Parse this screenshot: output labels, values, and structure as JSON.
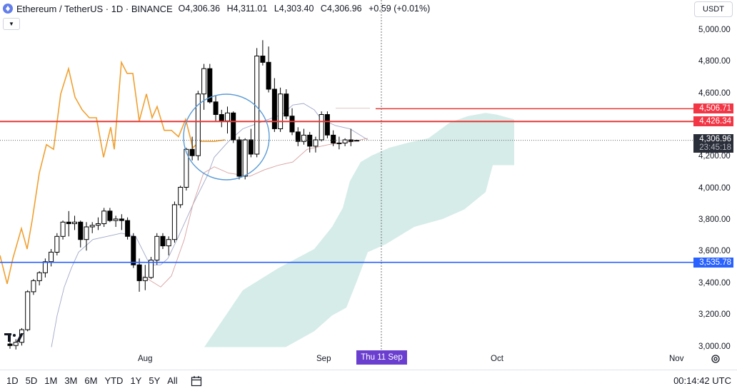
{
  "header": {
    "title": "Ethereum / TetherUS · 1D · BINANCE",
    "ohlc": [
      {
        "key": "O",
        "value": "4,306.36"
      },
      {
        "key": "H",
        "value": "4,311.01"
      },
      {
        "key": "L",
        "value": "4,303.40"
      },
      {
        "key": "C",
        "value": "4,306.96"
      }
    ],
    "change": "+0.59 (+0.01%)"
  },
  "currency": "USDT",
  "price_axis": {
    "ticks": [
      "5,000.00",
      "4,800.00",
      "4,600.00",
      "4,200.00",
      "4,000.00",
      "3,800.00",
      "3,600.00",
      "3,400.00",
      "3,200.00",
      "3,000.00"
    ],
    "tick_values": [
      5000,
      4800,
      4600,
      4200,
      4000,
      3800,
      3600,
      3400,
      3200,
      3000
    ]
  },
  "price_labels": {
    "resistance_high": {
      "text": "4,506.71",
      "value": 4506.71,
      "color": "#f23645"
    },
    "resistance_low": {
      "text": "4,426.34",
      "value": 4426.34,
      "color": "#f23645"
    },
    "last_price": {
      "text": "4,306.96",
      "value": 4306.96,
      "countdown": "23:45:18"
    },
    "support": {
      "text": "3,535.78",
      "value": 3535.78,
      "color": "#2962ff"
    }
  },
  "time_axis": {
    "ticks": [
      "Aug",
      "Sep",
      "Oct",
      "Nov"
    ],
    "crosshair": "Thu 11 Sep"
  },
  "ranges": [
    "1D",
    "5D",
    "1M",
    "3M",
    "6M",
    "YTD",
    "1Y",
    "5Y",
    "All"
  ],
  "clock": "00:14:42 UTC",
  "colors": {
    "up": "#ffffff",
    "down": "#000000",
    "orange_line": "#f0a030",
    "kumo": "#cfe9e5",
    "circle": "#5b9bd5",
    "red_line": "#e53935",
    "blue_line": "#2962ff"
  },
  "chart_data": {
    "type": "candlestick",
    "candles": [
      {
        "o": 3020,
        "h": 3040,
        "l": 2990,
        "c": 3010
      },
      {
        "o": 3010,
        "h": 3050,
        "l": 2985,
        "c": 3030
      },
      {
        "o": 3030,
        "h": 3120,
        "l": 3010,
        "c": 3110
      },
      {
        "o": 3110,
        "h": 3360,
        "l": 3100,
        "c": 3350
      },
      {
        "o": 3350,
        "h": 3430,
        "l": 3330,
        "c": 3420
      },
      {
        "o": 3420,
        "h": 3480,
        "l": 3390,
        "c": 3470
      },
      {
        "o": 3470,
        "h": 3560,
        "l": 3440,
        "c": 3540
      },
      {
        "o": 3540,
        "h": 3620,
        "l": 3510,
        "c": 3600
      },
      {
        "o": 3600,
        "h": 3720,
        "l": 3580,
        "c": 3700
      },
      {
        "o": 3700,
        "h": 3800,
        "l": 3680,
        "c": 3790
      },
      {
        "o": 3790,
        "h": 3860,
        "l": 3700,
        "c": 3780
      },
      {
        "o": 3780,
        "h": 3830,
        "l": 3740,
        "c": 3790
      },
      {
        "o": 3790,
        "h": 3800,
        "l": 3630,
        "c": 3680
      },
      {
        "o": 3680,
        "h": 3790,
        "l": 3610,
        "c": 3760
      },
      {
        "o": 3760,
        "h": 3790,
        "l": 3720,
        "c": 3770
      },
      {
        "o": 3770,
        "h": 3820,
        "l": 3740,
        "c": 3780
      },
      {
        "o": 3780,
        "h": 3880,
        "l": 3760,
        "c": 3860
      },
      {
        "o": 3860,
        "h": 3880,
        "l": 3790,
        "c": 3800
      },
      {
        "o": 3800,
        "h": 3830,
        "l": 3760,
        "c": 3810
      },
      {
        "o": 3810,
        "h": 3840,
        "l": 3740,
        "c": 3800
      },
      {
        "o": 3800,
        "h": 3820,
        "l": 3680,
        "c": 3700
      },
      {
        "o": 3700,
        "h": 3720,
        "l": 3500,
        "c": 3520
      },
      {
        "o": 3520,
        "h": 3560,
        "l": 3350,
        "c": 3420
      },
      {
        "o": 3420,
        "h": 3520,
        "l": 3360,
        "c": 3440
      },
      {
        "o": 3440,
        "h": 3570,
        "l": 3430,
        "c": 3550
      },
      {
        "o": 3550,
        "h": 3720,
        "l": 3520,
        "c": 3700
      },
      {
        "o": 3700,
        "h": 3720,
        "l": 3620,
        "c": 3640
      },
      {
        "o": 3640,
        "h": 3700,
        "l": 3580,
        "c": 3680
      },
      {
        "o": 3680,
        "h": 3920,
        "l": 3660,
        "c": 3900
      },
      {
        "o": 3900,
        "h": 4020,
        "l": 3880,
        "c": 4010
      },
      {
        "o": 4010,
        "h": 4260,
        "l": 3990,
        "c": 4250
      },
      {
        "o": 4250,
        "h": 4330,
        "l": 4180,
        "c": 4210
      },
      {
        "o": 4210,
        "h": 4620,
        "l": 4180,
        "c": 4600
      },
      {
        "o": 4600,
        "h": 4790,
        "l": 4500,
        "c": 4760
      },
      {
        "o": 4760,
        "h": 4790,
        "l": 4540,
        "c": 4550
      },
      {
        "o": 4550,
        "h": 4590,
        "l": 4430,
        "c": 4470
      },
      {
        "o": 4470,
        "h": 4500,
        "l": 4390,
        "c": 4430
      },
      {
        "o": 4430,
        "h": 4520,
        "l": 4350,
        "c": 4480
      },
      {
        "o": 4480,
        "h": 4490,
        "l": 4290,
        "c": 4310
      },
      {
        "o": 4310,
        "h": 4330,
        "l": 4060,
        "c": 4080
      },
      {
        "o": 4080,
        "h": 4320,
        "l": 4060,
        "c": 4310
      },
      {
        "o": 4310,
        "h": 4380,
        "l": 4200,
        "c": 4220
      },
      {
        "o": 4220,
        "h": 4890,
        "l": 4200,
        "c": 4840
      },
      {
        "o": 4840,
        "h": 4940,
        "l": 4780,
        "c": 4800
      },
      {
        "o": 4800,
        "h": 4900,
        "l": 4610,
        "c": 4630
      },
      {
        "o": 4630,
        "h": 4700,
        "l": 4360,
        "c": 4380
      },
      {
        "o": 4380,
        "h": 4640,
        "l": 4360,
        "c": 4600
      },
      {
        "o": 4600,
        "h": 4630,
        "l": 4440,
        "c": 4460
      },
      {
        "o": 4460,
        "h": 4510,
        "l": 4340,
        "c": 4360
      },
      {
        "o": 4360,
        "h": 4390,
        "l": 4270,
        "c": 4300
      },
      {
        "o": 4300,
        "h": 4380,
        "l": 4280,
        "c": 4340
      },
      {
        "o": 4340,
        "h": 4360,
        "l": 4230,
        "c": 4270
      },
      {
        "o": 4270,
        "h": 4330,
        "l": 4230,
        "c": 4310
      },
      {
        "o": 4310,
        "h": 4490,
        "l": 4300,
        "c": 4470
      },
      {
        "o": 4470,
        "h": 4490,
        "l": 4320,
        "c": 4340
      },
      {
        "o": 4340,
        "h": 4370,
        "l": 4270,
        "c": 4290
      },
      {
        "o": 4290,
        "h": 4330,
        "l": 4250,
        "c": 4290
      },
      {
        "o": 4290,
        "h": 4320,
        "l": 4270,
        "c": 4310
      },
      {
        "o": 4310,
        "h": 4380,
        "l": 4270,
        "c": 4300
      },
      {
        "o": 4306.36,
        "h": 4311.01,
        "l": 4303.4,
        "c": 4306.96
      }
    ]
  }
}
